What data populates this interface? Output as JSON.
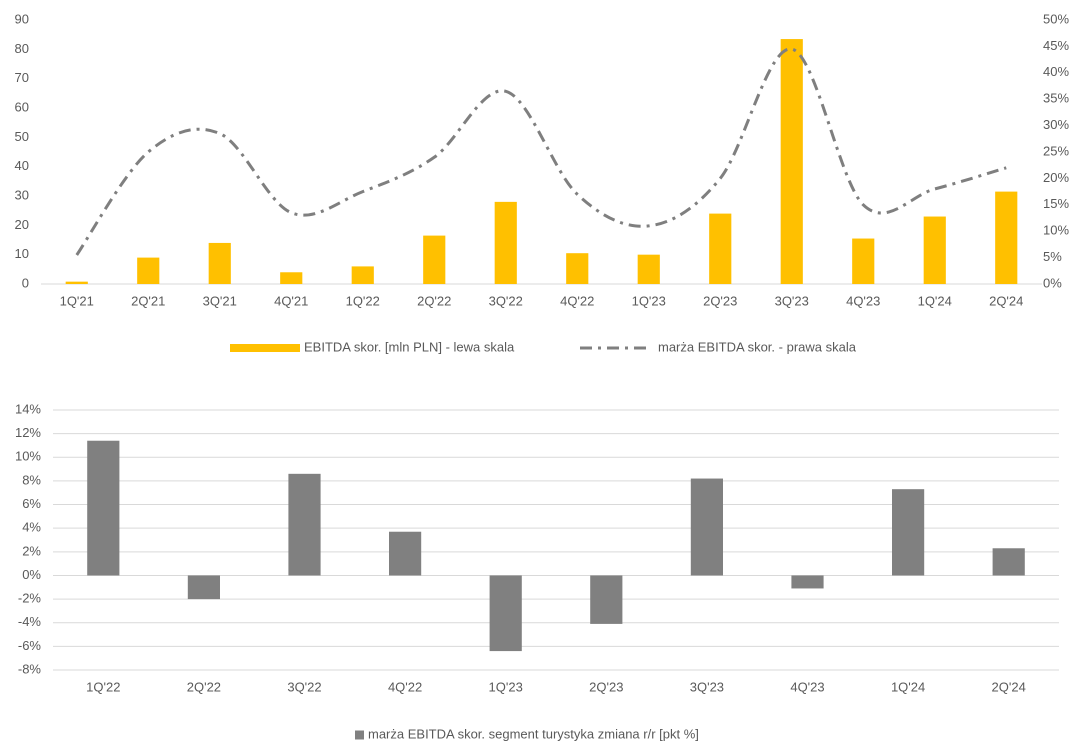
{
  "chart_data": [
    {
      "type": "bar",
      "categories": [
        "1Q'21",
        "2Q'21",
        "3Q'21",
        "4Q'21",
        "1Q'22",
        "2Q'22",
        "3Q'22",
        "4Q'22",
        "1Q'23",
        "2Q'23",
        "3Q'23",
        "4Q'23",
        "1Q'24",
        "2Q'24"
      ],
      "series": [
        {
          "name": "EBITDA skor. [mln PLN] - lewa skala",
          "type": "bar",
          "color": "#FFC000",
          "values": [
            0.8,
            9,
            14,
            4,
            6,
            16.5,
            28,
            10.5,
            10,
            24,
            83.5,
            15.5,
            23,
            31.5
          ]
        },
        {
          "name": "marża EBITDA skor. - prawa skala",
          "type": "line",
          "axis": "y2",
          "color": "#7f7f7f",
          "values": [
            5.5,
            25,
            28.5,
            13.5,
            17.5,
            24,
            36.5,
            17,
            11,
            20,
            44.5,
            15,
            18,
            22
          ]
        }
      ],
      "ylim": [
        0,
        90
      ],
      "yticks": [
        0,
        10,
        20,
        30,
        40,
        50,
        60,
        70,
        80,
        90
      ],
      "y2lim": [
        0,
        50
      ],
      "y2ticks": [
        {
          "value": 0,
          "label": "0%"
        },
        {
          "value": 5,
          "label": "5%"
        },
        {
          "value": 10,
          "label": "10%"
        },
        {
          "value": 15,
          "label": "15%"
        },
        {
          "value": 20,
          "label": "20%"
        },
        {
          "value": 25,
          "label": "25%"
        },
        {
          "value": 30,
          "label": "30%"
        },
        {
          "value": 35,
          "label": "35%"
        },
        {
          "value": 40,
          "label": "40%"
        },
        {
          "value": 45,
          "label": "45%"
        },
        {
          "value": 50,
          "label": "50%"
        }
      ],
      "grid": false,
      "legend": "bottom"
    },
    {
      "type": "bar",
      "categories": [
        "1Q'22",
        "2Q'22",
        "3Q'22",
        "4Q'22",
        "1Q'23",
        "2Q'23",
        "3Q'23",
        "4Q'23",
        "1Q'24",
        "2Q'24"
      ],
      "series": [
        {
          "name": "marża EBITDA skor. segment turystyka zmiana r/r [pkt %]",
          "type": "bar",
          "color": "#808080",
          "values": [
            11.4,
            -2,
            8.6,
            3.7,
            -6.4,
            -4.1,
            8.2,
            -1.1,
            7.3,
            2.3
          ]
        }
      ],
      "ylim": [
        -8,
        14
      ],
      "yticks": [
        {
          "value": -8,
          "label": "-8%"
        },
        {
          "value": -6,
          "label": "-6%"
        },
        {
          "value": -4,
          "label": "-4%"
        },
        {
          "value": -2,
          "label": "-2%"
        },
        {
          "value": 0,
          "label": "0%"
        },
        {
          "value": 2,
          "label": "2%"
        },
        {
          "value": 4,
          "label": "4%"
        },
        {
          "value": 6,
          "label": "6%"
        },
        {
          "value": 8,
          "label": "8%"
        },
        {
          "value": 10,
          "label": "10%"
        },
        {
          "value": 12,
          "label": "12%"
        },
        {
          "value": 14,
          "label": "14%"
        }
      ],
      "grid": true,
      "legend": "bottom"
    }
  ]
}
